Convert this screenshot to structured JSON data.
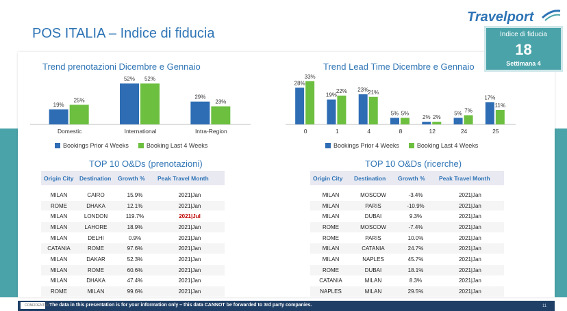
{
  "header": {
    "title": "POS ITALIA – Indice di fiducia",
    "logo_text": "Travelport",
    "badge_label": "Indice di fiducia",
    "badge_number": "18",
    "badge_week": "Settimana 4"
  },
  "chart1": {
    "title": "Trend prenotazioni Dicembre e Gennaio",
    "legend": [
      "Bookings Prior 4 Weeks",
      "Booking Last 4 Weeks"
    ]
  },
  "chart2": {
    "title": "Trend Lead Time Dicembre e Gennaio",
    "legend": [
      "Bookings Prior 4 Weeks",
      "Booking Last 4 Weeks"
    ]
  },
  "chart_data": [
    {
      "type": "bar",
      "title": "Trend prenotazioni Dicembre e Gennaio",
      "categories": [
        "Domestic",
        "International",
        "Intra-Region"
      ],
      "series": [
        {
          "name": "Bookings Prior 4 Weeks",
          "values": [
            19,
            52,
            29
          ],
          "labels": [
            "19%",
            "52%",
            "29%"
          ],
          "color": "#2e6db4"
        },
        {
          "name": "Booking Last 4 Weeks",
          "values": [
            25,
            52,
            23
          ],
          "labels": [
            "25%",
            "52%",
            "23%"
          ],
          "color": "#6cbf3f"
        }
      ],
      "ylim": [
        0,
        60
      ]
    },
    {
      "type": "bar",
      "title": "Trend Lead Time Dicembre e Gennaio",
      "categories": [
        "0",
        "1",
        "4",
        "8",
        "12",
        "24",
        "25"
      ],
      "series": [
        {
          "name": "Bookings Prior 4 Weeks",
          "values": [
            28,
            19,
            23,
            5,
            2,
            5,
            17
          ],
          "labels": [
            "28%",
            "19%",
            "23%",
            "5%",
            "2%",
            "5%",
            "17%"
          ],
          "color": "#2e6db4"
        },
        {
          "name": "Booking Last 4 Weeks",
          "values": [
            33,
            22,
            21,
            5,
            2,
            7,
            11
          ],
          "labels": [
            "33%",
            "22%",
            "21%",
            "5%",
            "2%",
            "7%",
            "11%"
          ],
          "color": "#6cbf3f"
        }
      ],
      "ylim": [
        0,
        36
      ]
    }
  ],
  "table1": {
    "title": "TOP 10 O&Ds (prenotazioni)",
    "headers": [
      "Origin City",
      "Destination",
      "Growth %",
      "Peak Travel Month"
    ],
    "rows": [
      [
        "MILAN",
        "CAIRO",
        "15.9%",
        "2021|Jan"
      ],
      [
        "ROME",
        "DHAKA",
        "12.1%",
        "2021|Jan"
      ],
      [
        "MILAN",
        "LONDON",
        "119.7%",
        "2021|Jul"
      ],
      [
        "MILAN",
        "LAHORE",
        "18.9%",
        "2021|Jan"
      ],
      [
        "MILAN",
        "DELHI",
        "0.9%",
        "2021|Jan"
      ],
      [
        "CATANIA",
        "ROME",
        "97.6%",
        "2021|Jan"
      ],
      [
        "MILAN",
        "DAKAR",
        "52.3%",
        "2021|Jan"
      ],
      [
        "MILAN",
        "ROME",
        "60.6%",
        "2021|Jan"
      ],
      [
        "MILAN",
        "DHAKA",
        "47.4%",
        "2021|Jan"
      ],
      [
        "ROME",
        "MILAN",
        "99.6%",
        "2021|Jan"
      ]
    ],
    "highlight_row": 2
  },
  "table2": {
    "title": "TOP 10 O&Ds (ricerche)",
    "headers": [
      "Origin City",
      "Destination",
      "Growth %",
      "Peak Travel Month"
    ],
    "rows": [
      [
        "MILAN",
        "MOSCOW",
        "-3.4%",
        "2021|Jan"
      ],
      [
        "MILAN",
        "PARIS",
        "-10.9%",
        "2021|Jan"
      ],
      [
        "MILAN",
        "DUBAI",
        "9.3%",
        "2021|Jan"
      ],
      [
        "ROME",
        "MOSCOW",
        "-7.4%",
        "2021|Jan"
      ],
      [
        "ROME",
        "PARIS",
        "10.0%",
        "2021|Jan"
      ],
      [
        "MILAN",
        "CATANIA",
        "24.7%",
        "2021|Jan"
      ],
      [
        "MILAN",
        "NAPLES",
        "45.7%",
        "2021|Jan"
      ],
      [
        "ROME",
        "DUBAI",
        "18.1%",
        "2021|Jan"
      ],
      [
        "CATANIA",
        "MILAN",
        "8.3%",
        "2021|Jan"
      ],
      [
        "NAPLES",
        "MILAN",
        "29.5%",
        "2021|Jan"
      ]
    ]
  },
  "footer": {
    "label": "CONFIDENTIAL",
    "disclaimer": "The data in this presentation is for your information only – this data CANNOT be forwarded to 3rd party companies.",
    "page": "11"
  },
  "colors": {
    "accent": "#2e74b5",
    "teal": "#4aa3a9",
    "blue_bar": "#2e6db4",
    "green_bar": "#6cbf3f",
    "footer": "#1f3f66"
  }
}
